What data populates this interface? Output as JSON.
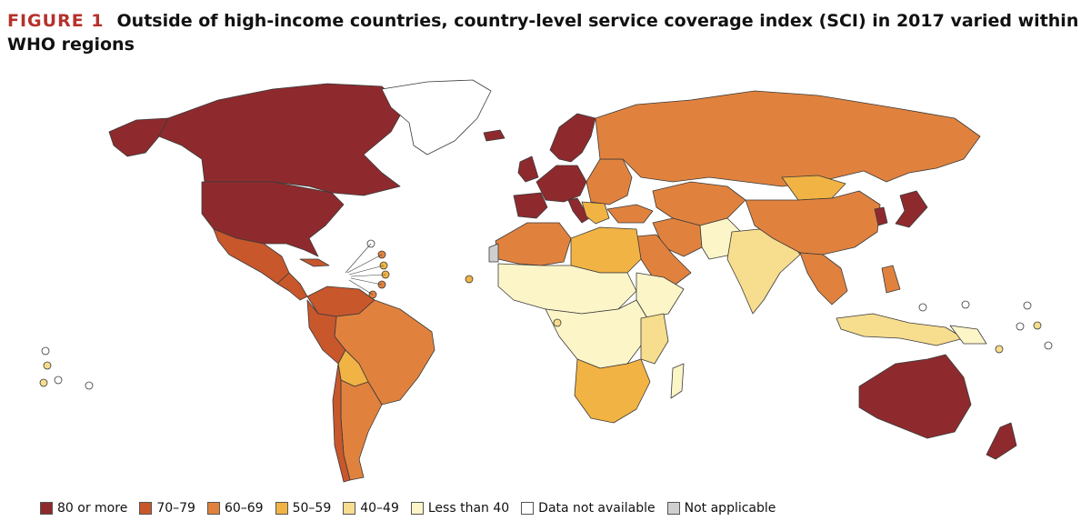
{
  "figure": {
    "label": "FIGURE 1",
    "title": "Outside of high-income countries, country-level service coverage index (SCI) in 2017 varied within WHO regions"
  },
  "colors": {
    "c80": "#8e2a2d",
    "c70": "#c8572c",
    "c60": "#e0823e",
    "c50": "#f1b343",
    "c40": "#f7dd8e",
    "lt40": "#fcf5c8",
    "na": "#ffffff",
    "notapp": "#cfcfcf",
    "border": "#3a3a3a"
  },
  "legend": [
    {
      "label": "80 or more",
      "color": "#8e2a2d"
    },
    {
      "label": "70–79",
      "color": "#c8572c"
    },
    {
      "label": "60–69",
      "color": "#e0823e"
    },
    {
      "label": "50–59",
      "color": "#f1b343"
    },
    {
      "label": "40–49",
      "color": "#f7dd8e"
    },
    {
      "label": "Less than 40",
      "color": "#fcf5c8"
    },
    {
      "label": "Data not available",
      "color": "#ffffff"
    },
    {
      "label": "Not applicable",
      "color": "#cfcfcf"
    }
  ]
}
